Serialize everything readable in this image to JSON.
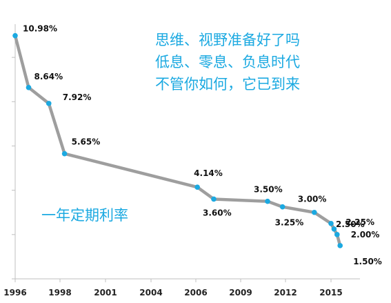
{
  "headline": {
    "lines": [
      "思维、视野准备好了吗",
      "低息、零息、负息时代",
      "不管你如何，它已到来"
    ],
    "color": "#1ba9e1"
  },
  "series_title": "一年定期利率",
  "chart_data": {
    "type": "line",
    "title": "",
    "xlabel": "",
    "ylabel": "",
    "x_ticks": [
      "1996",
      "1998",
      "2001",
      "2004",
      "2006",
      "2009",
      "2012",
      "2015"
    ],
    "xlim": [
      1996,
      2016
    ],
    "ylim": [
      0,
      11.5
    ],
    "grid": false,
    "series": [
      {
        "name": "一年定期利率",
        "x": [
          1996.0,
          1996.6,
          1997.5,
          1998.3,
          2006.1,
          2007.2,
          2010.8,
          2011.8,
          2013.9,
          2015.0,
          2015.2,
          2015.4,
          2015.6
        ],
        "y": [
          10.98,
          8.64,
          7.92,
          5.65,
          4.14,
          3.6,
          3.5,
          3.25,
          3.0,
          2.5,
          2.25,
          2.0,
          1.5
        ],
        "line_color": "#9e9e9e",
        "marker_color": "#1ba9e1"
      }
    ],
    "data_labels": [
      "10.98%",
      "8.64%",
      "7.92%",
      "5.65%",
      "4.14%",
      "3.60%",
      "3.50%",
      "3.25%",
      "3.00%",
      "2.50%",
      "2.25%",
      "2.00%",
      "1.50%"
    ]
  }
}
